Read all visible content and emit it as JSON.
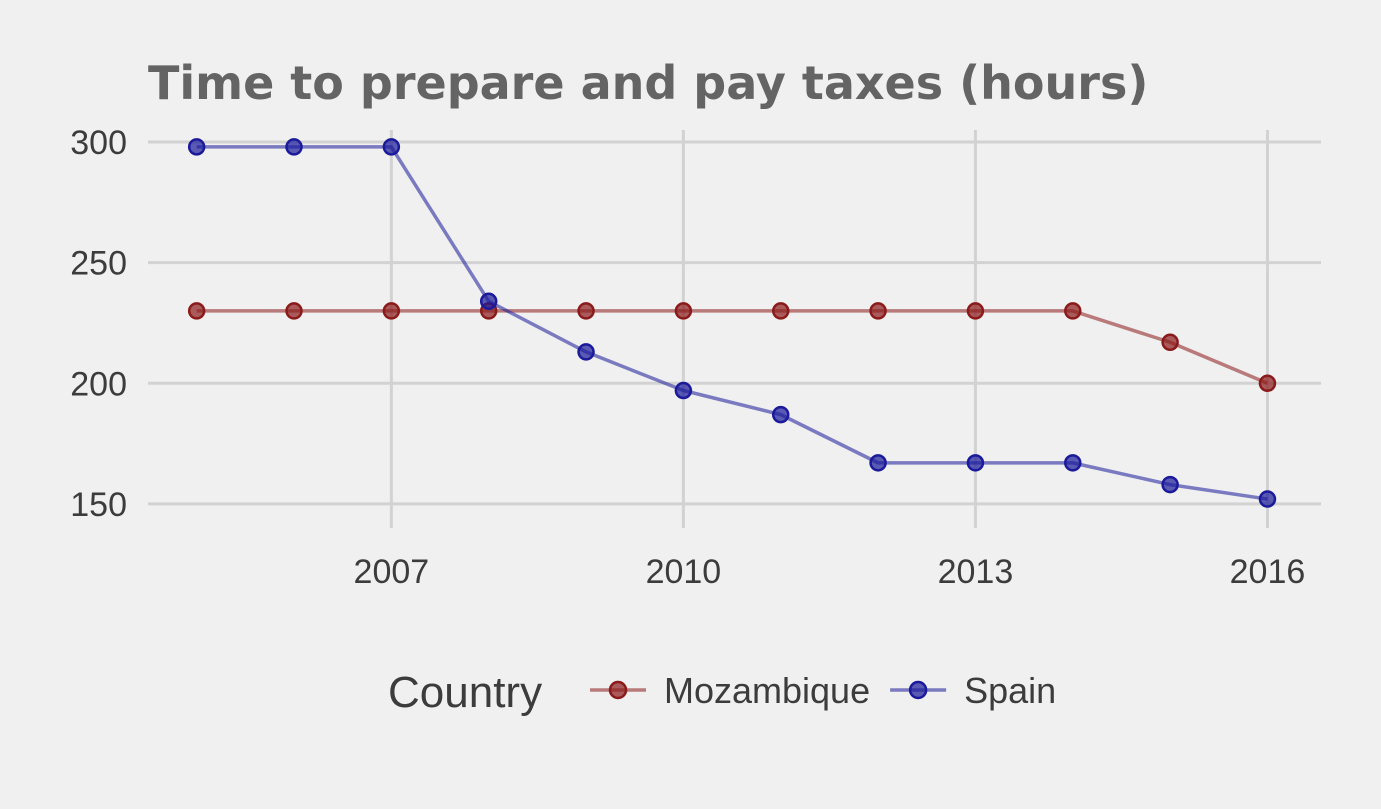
{
  "chart_data": {
    "type": "line",
    "title": "Time to prepare and pay taxes (hours)",
    "xlabel": "",
    "ylabel": "",
    "x": [
      2005,
      2006,
      2007,
      2008,
      2009,
      2010,
      2011,
      2012,
      2013,
      2014,
      2015,
      2016
    ],
    "xlim": [
      2004.5,
      2016.55
    ],
    "ylim": [
      140,
      305
    ],
    "x_ticks": [
      2007,
      2010,
      2013,
      2016
    ],
    "y_ticks": [
      150,
      200,
      250,
      300
    ],
    "grid": true,
    "legend": {
      "title": "Country",
      "position": "bottom"
    },
    "series": [
      {
        "name": "Mozambique",
        "color": "#8b1a1a",
        "values": [
          230,
          230,
          230,
          230,
          230,
          230,
          230,
          230,
          230,
          230,
          217,
          200
        ]
      },
      {
        "name": "Spain",
        "color": "#1a1a9b",
        "values": [
          298,
          298,
          298,
          234,
          213,
          197,
          187,
          167,
          167,
          167,
          158,
          152
        ]
      }
    ]
  }
}
